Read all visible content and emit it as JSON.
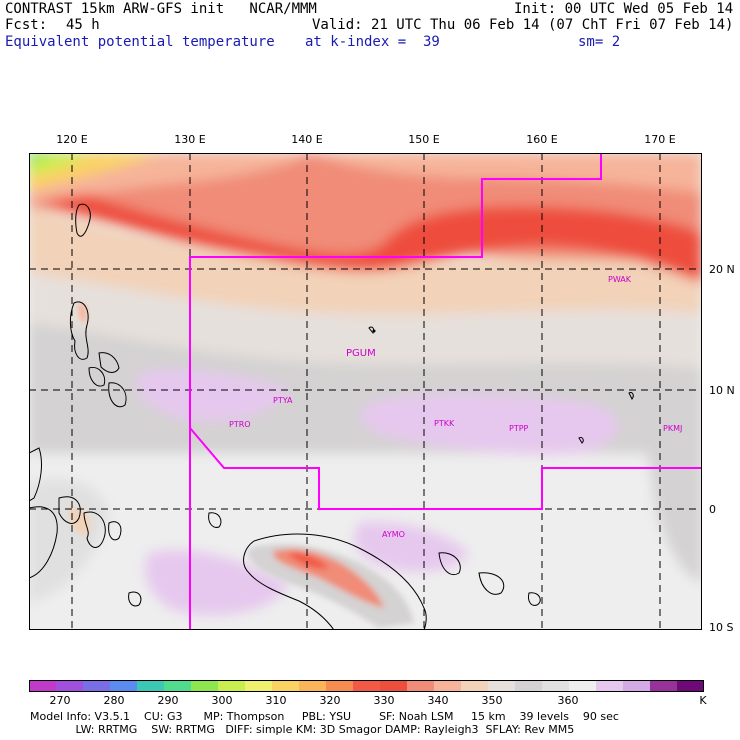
{
  "header": {
    "model_line": "CONTRAST 15km ARW-GFS init   NCAR/MMM",
    "forecast_label": "Fcst:",
    "forecast_hours": "45 h",
    "field_name": "Equivalent potential temperature",
    "level": "at k-index =  39",
    "init": "Init: 00 UTC Wed 05 Feb 14",
    "valid": "Valid: 21 UTC Thu 06 Feb 14 (07 ChT Fri 07 Feb 14)",
    "smoothing": "sm= 2"
  },
  "map": {
    "lon_labels": [
      "120 E",
      "130 E",
      "140 E",
      "150 E",
      "160 E",
      "170 E"
    ],
    "lat_labels": [
      "20 N",
      "10 N",
      "0",
      "10 S"
    ],
    "stations": [
      "PWAK",
      "PGUM",
      "PTYA",
      "PTRO",
      "PTKK",
      "PTPP",
      "PKMJ",
      "AYMO"
    ]
  },
  "colorbar": {
    "labels": [
      "270",
      "280",
      "290",
      "300",
      "310",
      "320",
      "330",
      "340",
      "350",
      "360"
    ],
    "unit": "K",
    "colors": [
      "#c03cc8",
      "#a050dc",
      "#7a6ee6",
      "#5a8cf0",
      "#3cc8b4",
      "#50dc8c",
      "#8ce650",
      "#c8ee50",
      "#eef06e",
      "#fad264",
      "#fab45a",
      "#f68c50",
      "#f25a46",
      "#ee4e3c",
      "#f08c78",
      "#f6b49a",
      "#f2d2b8",
      "#e6e0dc",
      "#d4d2d2",
      "#e0e0e0",
      "#eeeeee",
      "#e6c8ee",
      "#d4aae6",
      "#96329a",
      "#6e0a78"
    ]
  },
  "model_info": {
    "line1": "Model Info: V3.5.1    CU: G3      MP: Thompson     PBL: YSU        SF: Noah LSM     15 km    39 levels    90 sec",
    "line2": "             LW: RRTMG    SW: RRTMG   DIFF: simple KM: 3D Smagor DAMP: Rayleigh3  SFLAY: Rev MM5"
  }
}
